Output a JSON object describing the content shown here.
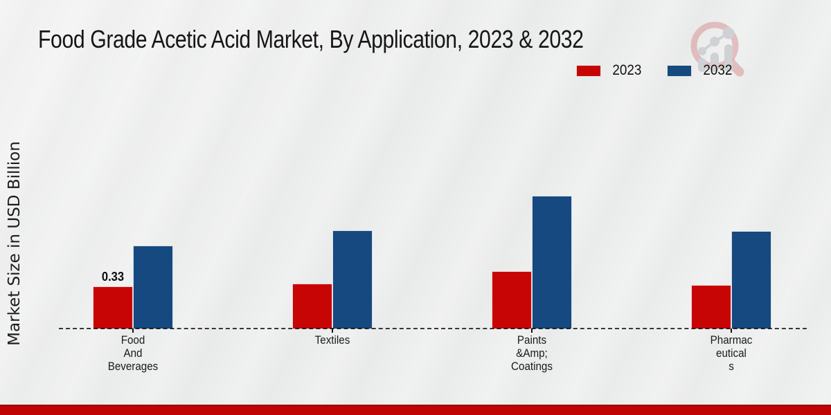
{
  "title": "Food Grade Acetic Acid Market, By Application, 2023 & 2032",
  "legend": [
    {
      "label": "2023",
      "color": "#c80505"
    },
    {
      "label": "2032",
      "color": "#15497f"
    }
  ],
  "colors": {
    "background": "#e9eaea",
    "footer_bar": "#bf0404",
    "axis": "#3a3a3a",
    "series_2023": "#c80505",
    "series_2032": "#15497f"
  },
  "logo": {
    "name": "market-research-magnifier-logo"
  },
  "footer": {},
  "chart_data": {
    "type": "bar",
    "title": "Food Grade Acetic Acid Market, By Application, 2023 & 2032",
    "ylabel": "Market Size in USD Billion",
    "xlabel": "",
    "ylim": [
      0,
      1.2
    ],
    "grid": false,
    "legend_position": "top-right",
    "categories": [
      "Food And Beverages",
      "Textiles",
      "Paints &Amp; Coatings",
      "Pharmaceuticals"
    ],
    "category_display_lines": [
      [
        "Food",
        "And",
        "Beverages"
      ],
      [
        "Textiles"
      ],
      [
        "Paints",
        "&Amp;",
        "Coatings"
      ],
      [
        "Pharmac",
        "eutical",
        "s"
      ]
    ],
    "series": [
      {
        "name": "2023",
        "color": "#c80505",
        "values": [
          0.33,
          0.35,
          0.45,
          0.34
        ]
      },
      {
        "name": "2032",
        "color": "#15497f",
        "values": [
          0.65,
          0.77,
          1.04,
          0.76
        ]
      }
    ],
    "data_label": {
      "series_index": 0,
      "category_index": 0,
      "text": "0.33"
    }
  }
}
